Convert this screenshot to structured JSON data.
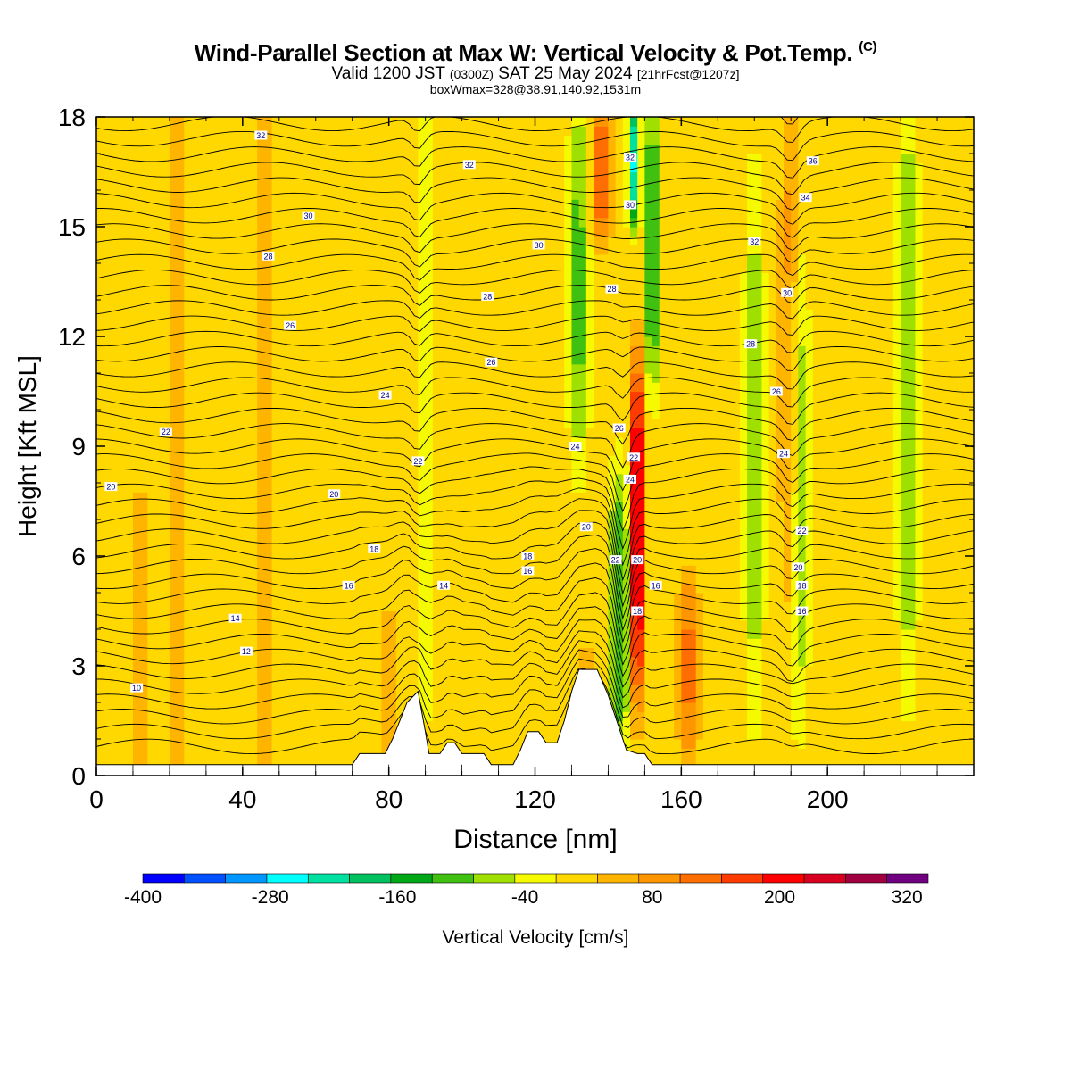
{
  "header": {
    "title": "Wind-Parallel Section at Max W: Vertical Velocity & Pot.Temp.",
    "copyright": "(C)",
    "valid_prefix": "Valid 1200 JST",
    "valid_utc": "(0300Z)",
    "valid_date": "SAT 25 May 2024",
    "forecast": "[21hrFcst@1207z]",
    "boxmax": "boxWmax=328@38.91,140.92,1531m"
  },
  "chart_data": {
    "type": "heatmap",
    "xlabel": "Distance [nm]",
    "ylabel": "Height [Kft MSL]",
    "xlim": [
      0,
      240
    ],
    "ylim": [
      0,
      18
    ],
    "x_ticks": [
      0,
      40,
      80,
      120,
      160,
      200
    ],
    "y_ticks": [
      0,
      3,
      6,
      9,
      12,
      15,
      18
    ],
    "colorbar": {
      "label": "Vertical Velocity [cm/s]",
      "bounds": [
        -400,
        340
      ],
      "step": 40,
      "tick_values": [
        -400,
        -280,
        -160,
        -40,
        80,
        200,
        320
      ],
      "tick_labels": [
        "-400",
        "-280",
        "-160",
        "-40",
        "80",
        "200",
        "320"
      ],
      "colors": [
        "#0000ff",
        "#0050ff",
        "#0096ff",
        "#00ffff",
        "#00e0a0",
        "#00c060",
        "#00a818",
        "#40c010",
        "#a0e000",
        "#f5fa00",
        "#ffd800",
        "#ffb400",
        "#ff9600",
        "#ff6e00",
        "#ff3c00",
        "#ff0000",
        "#d80020",
        "#a00040",
        "#700080"
      ]
    },
    "background_w": 20,
    "w_features": [
      {
        "x": 22,
        "y0": 0,
        "y1": 18,
        "w": 60
      },
      {
        "x": 46,
        "y0": 0,
        "y1": 18,
        "w": 60
      },
      {
        "x": 12,
        "y0": 0,
        "y1": 7.5,
        "w": 50
      },
      {
        "x": 80,
        "y0": 0,
        "y1": 4,
        "w": 60
      },
      {
        "x": 134,
        "y0": 0,
        "y1": 3,
        "w": 80
      },
      {
        "x": 162,
        "y0": 1,
        "y1": 5,
        "w": 120
      },
      {
        "x": 148,
        "y0": 2.5,
        "y1": 11,
        "w": 300
      },
      {
        "x": 138,
        "y0": 15,
        "y1": 18,
        "w": 140
      },
      {
        "x": 143,
        "y0": 1,
        "y1": 8,
        "w": -140
      },
      {
        "x": 152,
        "y0": 11,
        "y1": 18,
        "w": -180
      },
      {
        "x": 147,
        "y0": 15.5,
        "y1": 18,
        "w": -260
      },
      {
        "x": 132,
        "y0": 9,
        "y1": 18,
        "w": -120
      },
      {
        "x": 180,
        "y0": 2,
        "y1": 16,
        "w": -90
      },
      {
        "x": 192,
        "y0": 2,
        "y1": 14,
        "w": -110
      },
      {
        "x": 222,
        "y0": 3,
        "y1": 18,
        "w": -110
      },
      {
        "x": 90,
        "y0": 2,
        "y1": 18,
        "w": -60
      },
      {
        "x": 190,
        "y0": 4,
        "y1": 18,
        "w": 90
      }
    ],
    "terrain": [
      [
        0,
        0.3
      ],
      [
        70,
        0.3
      ],
      [
        72,
        0.6
      ],
      [
        79,
        0.6
      ],
      [
        81,
        1.0
      ],
      [
        83,
        1.5
      ],
      [
        85,
        2.0
      ],
      [
        88,
        2.3
      ],
      [
        90,
        1.2
      ],
      [
        91,
        0.6
      ],
      [
        94,
        0.6
      ],
      [
        96,
        0.9
      ],
      [
        98,
        0.9
      ],
      [
        100,
        0.6
      ],
      [
        106,
        0.6
      ],
      [
        108,
        0.3
      ],
      [
        114,
        0.3
      ],
      [
        116,
        0.7
      ],
      [
        118,
        1.2
      ],
      [
        121,
        1.2
      ],
      [
        123,
        0.9
      ],
      [
        126,
        0.9
      ],
      [
        128,
        1.5
      ],
      [
        130,
        2.3
      ],
      [
        132,
        2.9
      ],
      [
        137,
        2.9
      ],
      [
        140,
        2.2
      ],
      [
        143,
        1.3
      ],
      [
        145,
        0.7
      ],
      [
        148,
        0.6
      ],
      [
        150,
        0.6
      ],
      [
        152,
        0.3
      ],
      [
        240,
        0.3
      ]
    ],
    "contour_labels": [
      {
        "x": 45,
        "y": 17.5,
        "text": "32"
      },
      {
        "x": 102,
        "y": 16.7,
        "text": "32"
      },
      {
        "x": 146,
        "y": 16.9,
        "text": "32"
      },
      {
        "x": 196,
        "y": 16.8,
        "text": "36"
      },
      {
        "x": 194,
        "y": 15.8,
        "text": "34"
      },
      {
        "x": 146,
        "y": 15.6,
        "text": "30"
      },
      {
        "x": 58,
        "y": 15.3,
        "text": "30"
      },
      {
        "x": 121,
        "y": 14.5,
        "text": "30"
      },
      {
        "x": 180,
        "y": 14.6,
        "text": "32"
      },
      {
        "x": 47,
        "y": 14.2,
        "text": "28"
      },
      {
        "x": 141,
        "y": 13.3,
        "text": "28"
      },
      {
        "x": 107,
        "y": 13.1,
        "text": "28"
      },
      {
        "x": 189,
        "y": 13.2,
        "text": "30"
      },
      {
        "x": 53,
        "y": 12.3,
        "text": "26"
      },
      {
        "x": 108,
        "y": 11.3,
        "text": "26"
      },
      {
        "x": 179,
        "y": 11.8,
        "text": "28"
      },
      {
        "x": 79,
        "y": 10.4,
        "text": "24"
      },
      {
        "x": 186,
        "y": 10.5,
        "text": "26"
      },
      {
        "x": 19,
        "y": 9.4,
        "text": "22"
      },
      {
        "x": 143,
        "y": 9.5,
        "text": "26"
      },
      {
        "x": 131,
        "y": 9.0,
        "text": "24"
      },
      {
        "x": 188,
        "y": 8.8,
        "text": "24"
      },
      {
        "x": 88,
        "y": 8.6,
        "text": "22"
      },
      {
        "x": 147,
        "y": 8.7,
        "text": "22"
      },
      {
        "x": 146,
        "y": 8.1,
        "text": "24"
      },
      {
        "x": 4,
        "y": 7.9,
        "text": "20"
      },
      {
        "x": 65,
        "y": 7.7,
        "text": "20"
      },
      {
        "x": 134,
        "y": 6.8,
        "text": "20"
      },
      {
        "x": 193,
        "y": 6.7,
        "text": "22"
      },
      {
        "x": 76,
        "y": 6.2,
        "text": "18"
      },
      {
        "x": 118,
        "y": 6.0,
        "text": "18"
      },
      {
        "x": 142,
        "y": 5.9,
        "text": "22"
      },
      {
        "x": 148,
        "y": 5.9,
        "text": "20"
      },
      {
        "x": 118,
        "y": 5.6,
        "text": "16"
      },
      {
        "x": 192,
        "y": 5.7,
        "text": "20"
      },
      {
        "x": 69,
        "y": 5.2,
        "text": "16"
      },
      {
        "x": 95,
        "y": 5.2,
        "text": "14"
      },
      {
        "x": 153,
        "y": 5.2,
        "text": "16"
      },
      {
        "x": 193,
        "y": 5.2,
        "text": "18"
      },
      {
        "x": 148,
        "y": 4.5,
        "text": "18"
      },
      {
        "x": 193,
        "y": 4.5,
        "text": "16"
      },
      {
        "x": 38,
        "y": 4.3,
        "text": "14"
      },
      {
        "x": 41,
        "y": 3.4,
        "text": "12"
      },
      {
        "x": 11,
        "y": 2.4,
        "text": "10"
      }
    ]
  }
}
